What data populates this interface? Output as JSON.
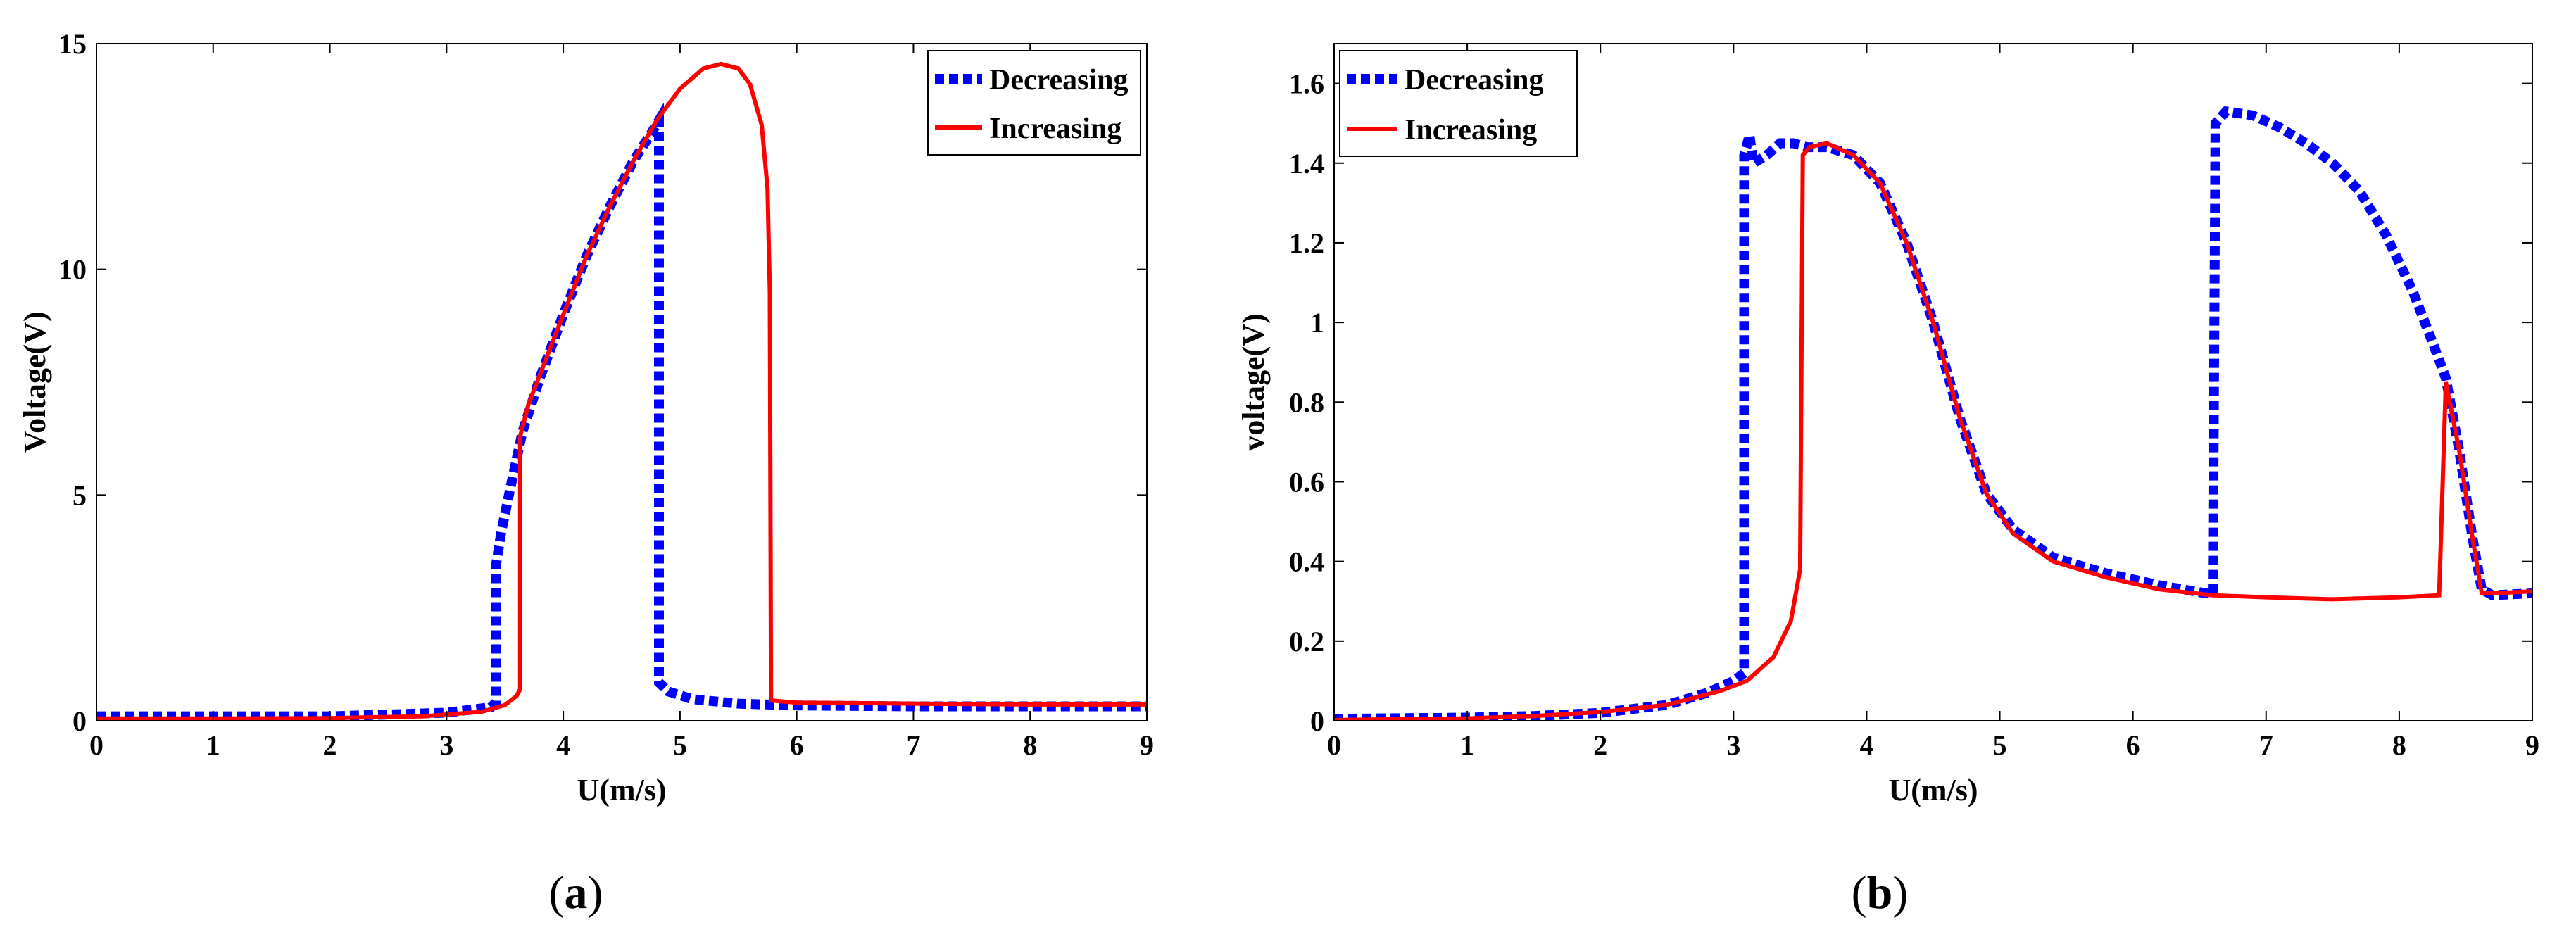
{
  "chart_data": [
    {
      "type": "line",
      "panel_label_open": "(",
      "panel_label": "a",
      "panel_label_close": ")",
      "xlabel": "U(m/s)",
      "ylabel": "Voltage(V)",
      "xlim": [
        0,
        9
      ],
      "ylim": [
        0,
        15
      ],
      "xticks": [
        0,
        1,
        2,
        3,
        4,
        5,
        6,
        7,
        8,
        9
      ],
      "yticks": [
        0,
        5,
        10,
        15
      ],
      "grid": false,
      "legend_position": "top-right",
      "series": [
        {
          "name": "Decreasing",
          "color": "#0000ff",
          "style": "dotted",
          "points": [
            [
              0,
              0.1
            ],
            [
              1,
              0.1
            ],
            [
              2,
              0.1
            ],
            [
              3,
              0.18
            ],
            [
              3.38,
              0.3
            ],
            [
              3.42,
              0.4
            ],
            [
              3.42,
              3.4
            ],
            [
              3.47,
              4.2
            ],
            [
              3.55,
              5.2
            ],
            [
              3.65,
              6.4
            ],
            [
              3.8,
              7.6
            ],
            [
              4.0,
              9.0
            ],
            [
              4.2,
              10.3
            ],
            [
              4.4,
              11.4
            ],
            [
              4.6,
              12.4
            ],
            [
              4.75,
              13.0
            ],
            [
              4.82,
              13.3
            ],
            [
              4.82,
              0.85
            ],
            [
              4.9,
              0.65
            ],
            [
              5.1,
              0.48
            ],
            [
              5.5,
              0.38
            ],
            [
              6,
              0.34
            ],
            [
              7,
              0.32
            ],
            [
              8,
              0.32
            ],
            [
              9,
              0.32
            ]
          ]
        },
        {
          "name": "Increasing",
          "color": "#ff0000",
          "style": "solid",
          "points": [
            [
              0,
              0.05
            ],
            [
              1,
              0.05
            ],
            [
              2,
              0.06
            ],
            [
              2.8,
              0.1
            ],
            [
              3.3,
              0.2
            ],
            [
              3.5,
              0.35
            ],
            [
              3.6,
              0.55
            ],
            [
              3.63,
              0.7
            ],
            [
              3.63,
              6.3
            ],
            [
              3.7,
              7.0
            ],
            [
              3.85,
              8.0
            ],
            [
              4.0,
              9.0
            ],
            [
              4.2,
              10.3
            ],
            [
              4.4,
              11.4
            ],
            [
              4.6,
              12.4
            ],
            [
              4.8,
              13.3
            ],
            [
              5.0,
              14.0
            ],
            [
              5.2,
              14.45
            ],
            [
              5.35,
              14.55
            ],
            [
              5.5,
              14.45
            ],
            [
              5.6,
              14.1
            ],
            [
              5.7,
              13.2
            ],
            [
              5.75,
              11.8
            ],
            [
              5.77,
              9.5
            ],
            [
              5.78,
              0.45
            ],
            [
              6,
              0.4
            ],
            [
              7,
              0.38
            ],
            [
              8,
              0.36
            ],
            [
              9,
              0.36
            ]
          ]
        }
      ]
    },
    {
      "type": "line",
      "panel_label_open": "(",
      "panel_label": "b",
      "panel_label_close": ")",
      "xlabel": "U(m/s)",
      "ylabel": "voltage(V)",
      "xlim": [
        0,
        9
      ],
      "ylim": [
        0,
        1.7
      ],
      "xticks": [
        0,
        1,
        2,
        3,
        4,
        5,
        6,
        7,
        8,
        9
      ],
      "yticks": [
        0,
        0.2,
        0.4,
        0.6,
        0.8,
        1,
        1.2,
        1.4,
        1.6
      ],
      "grid": false,
      "legend_position": "top-left",
      "series": [
        {
          "name": "Decreasing",
          "color": "#0000ff",
          "style": "dotted",
          "points": [
            [
              0,
              0.005
            ],
            [
              1,
              0.008
            ],
            [
              1.5,
              0.012
            ],
            [
              2,
              0.02
            ],
            [
              2.5,
              0.04
            ],
            [
              2.8,
              0.07
            ],
            [
              3.0,
              0.1
            ],
            [
              3.08,
              0.12
            ],
            [
              3.08,
              1.42
            ],
            [
              3.12,
              1.47
            ],
            [
              3.15,
              1.4
            ],
            [
              3.25,
              1.42
            ],
            [
              3.35,
              1.45
            ],
            [
              3.45,
              1.45
            ],
            [
              3.55,
              1.44
            ],
            [
              3.7,
              1.44
            ],
            [
              3.9,
              1.42
            ],
            [
              4.1,
              1.35
            ],
            [
              4.3,
              1.2
            ],
            [
              4.5,
              1.0
            ],
            [
              4.7,
              0.76
            ],
            [
              4.9,
              0.57
            ],
            [
              5.1,
              0.48
            ],
            [
              5.4,
              0.41
            ],
            [
              5.8,
              0.37
            ],
            [
              6.2,
              0.34
            ],
            [
              6.55,
              0.32
            ],
            [
              6.6,
              0.32
            ],
            [
              6.62,
              1.5
            ],
            [
              6.7,
              1.53
            ],
            [
              6.9,
              1.52
            ],
            [
              7.1,
              1.49
            ],
            [
              7.3,
              1.45
            ],
            [
              7.5,
              1.4
            ],
            [
              7.7,
              1.33
            ],
            [
              7.9,
              1.22
            ],
            [
              8.1,
              1.08
            ],
            [
              8.25,
              0.95
            ],
            [
              8.35,
              0.86
            ],
            [
              8.45,
              0.68
            ],
            [
              8.55,
              0.46
            ],
            [
              8.62,
              0.33
            ],
            [
              8.7,
              0.315
            ],
            [
              9,
              0.32
            ]
          ]
        },
        {
          "name": "Increasing",
          "color": "#ff0000",
          "style": "solid",
          "points": [
            [
              0,
              0.002
            ],
            [
              1,
              0.006
            ],
            [
              1.5,
              0.012
            ],
            [
              2,
              0.022
            ],
            [
              2.5,
              0.04
            ],
            [
              2.9,
              0.075
            ],
            [
              3.1,
              0.1
            ],
            [
              3.3,
              0.16
            ],
            [
              3.43,
              0.25
            ],
            [
              3.5,
              0.38
            ],
            [
              3.52,
              1.42
            ],
            [
              3.57,
              1.44
            ],
            [
              3.7,
              1.45
            ],
            [
              3.9,
              1.42
            ],
            [
              4.1,
              1.35
            ],
            [
              4.3,
              1.2
            ],
            [
              4.5,
              1.0
            ],
            [
              4.7,
              0.76
            ],
            [
              4.9,
              0.57
            ],
            [
              5.1,
              0.47
            ],
            [
              5.4,
              0.4
            ],
            [
              5.8,
              0.36
            ],
            [
              6.2,
              0.33
            ],
            [
              6.6,
              0.315
            ],
            [
              7,
              0.31
            ],
            [
              7.5,
              0.305
            ],
            [
              8,
              0.31
            ],
            [
              8.3,
              0.315
            ],
            [
              8.35,
              0.85
            ],
            [
              8.45,
              0.68
            ],
            [
              8.55,
              0.46
            ],
            [
              8.62,
              0.32
            ],
            [
              8.7,
              0.32
            ],
            [
              9,
              0.325
            ]
          ]
        }
      ]
    }
  ]
}
